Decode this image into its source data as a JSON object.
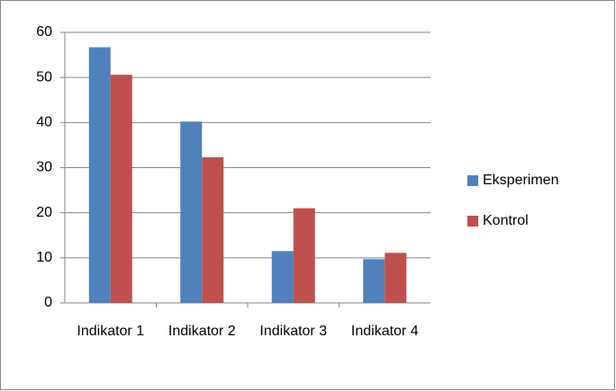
{
  "chart_data": {
    "type": "bar",
    "categories": [
      "Indikator 1",
      "Indikator 2",
      "Indikator 3",
      "Indikator 4"
    ],
    "series": [
      {
        "name": "Eksperimen",
        "color": "#4f81bd",
        "values": [
          56.7,
          40.2,
          11.5,
          9.7
        ]
      },
      {
        "name": "Kontrol",
        "color": "#c0504d",
        "values": [
          50.6,
          32.3,
          21,
          11.1
        ]
      }
    ],
    "ylim": [
      0,
      60
    ],
    "yticks": [
      0,
      10,
      20,
      30,
      40,
      50,
      60
    ],
    "grid": true,
    "legend": "right"
  }
}
